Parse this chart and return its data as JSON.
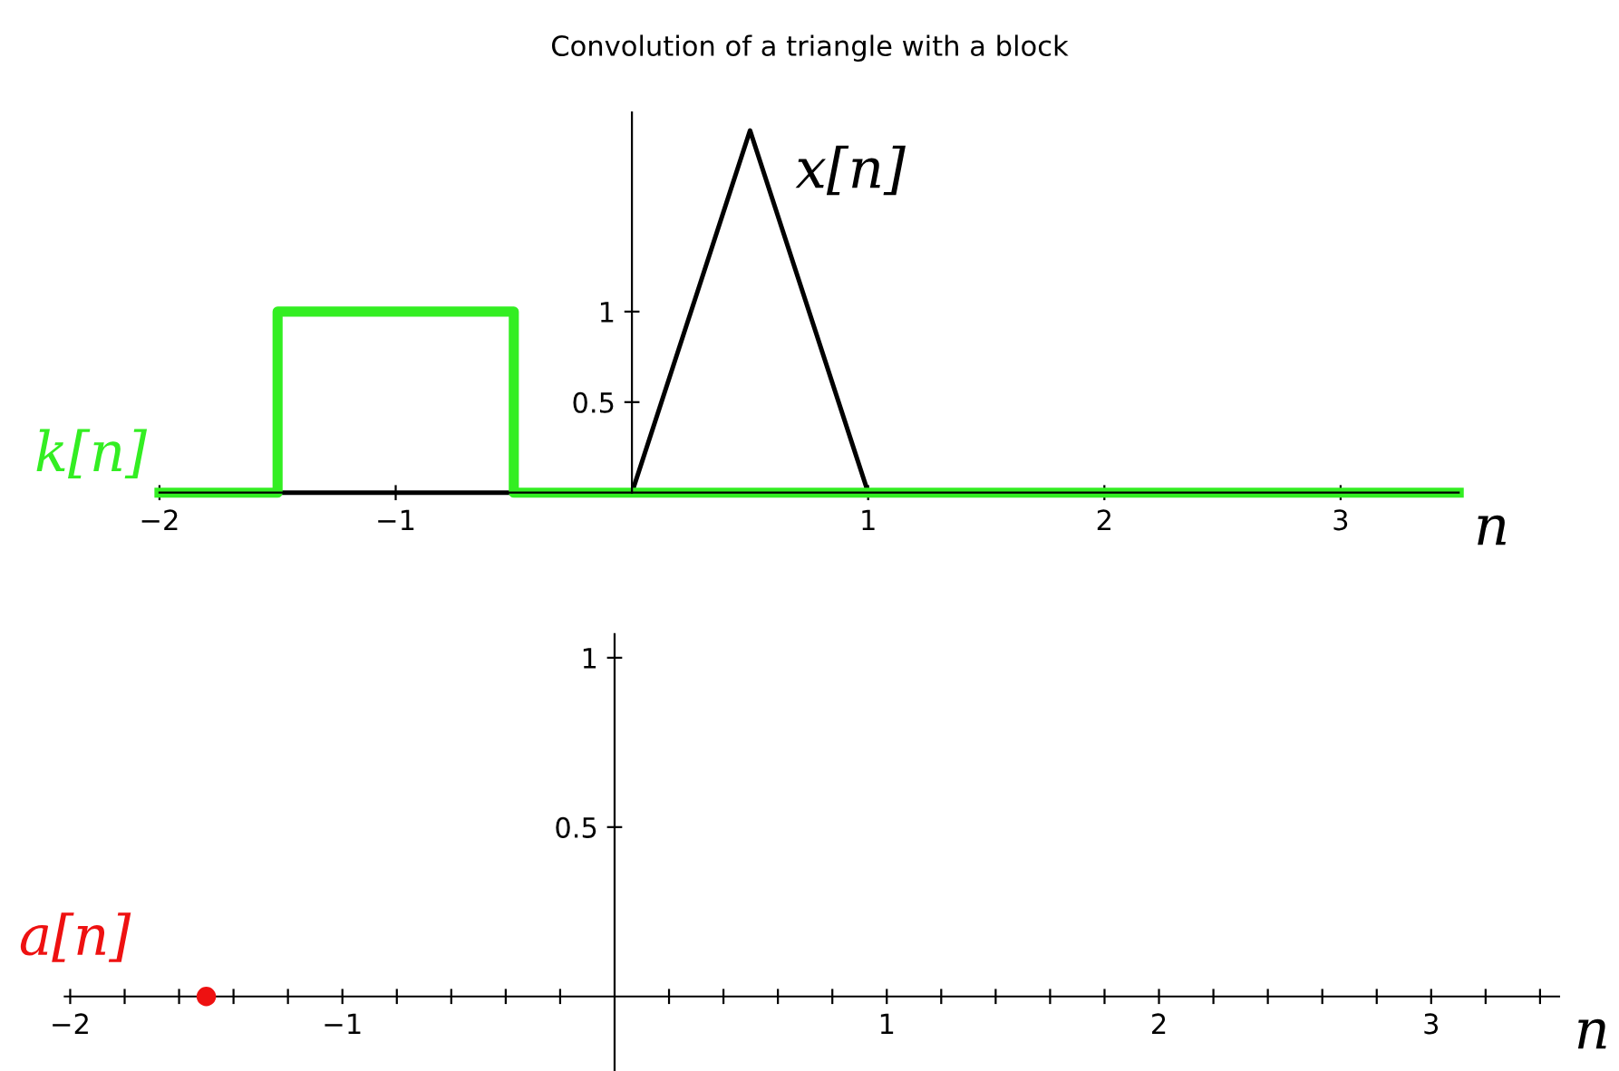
{
  "chart_data": [
    {
      "type": "line",
      "title": "Convolution of a triangle with a block",
      "xlabel": "n",
      "xlim": [
        -2,
        3.5
      ],
      "ylim": [
        0,
        2.1
      ],
      "xticks": [
        -2,
        -1,
        1,
        2,
        3
      ],
      "yticks": [
        0.5,
        1
      ],
      "series": [
        {
          "name": "x[n]",
          "color": "#000000",
          "x": [
            -1.5,
            0,
            0.5,
            1
          ],
          "values": [
            0,
            0,
            2,
            0
          ]
        },
        {
          "name": "k[n]",
          "color": "#33ee22",
          "x": [
            -2,
            -1.5,
            -1.5,
            -0.5,
            -0.5,
            3.5
          ],
          "values": [
            0,
            0,
            1,
            1,
            0,
            0
          ]
        }
      ]
    },
    {
      "type": "scatter",
      "xlabel": "n",
      "xlim": [
        -2.02,
        3.47
      ],
      "ylim": [
        -0.22,
        1.07
      ],
      "xticks": [
        -2,
        {
          "value": -1.8,
          "label": null
        },
        {
          "value": -1.6,
          "label": null
        },
        {
          "value": -1.4,
          "label": null
        },
        {
          "value": -1.2,
          "label": null
        },
        -1,
        {
          "value": -0.8,
          "label": null
        },
        {
          "value": -0.6,
          "label": null
        },
        {
          "value": -0.4,
          "label": null
        },
        {
          "value": -0.2,
          "label": null
        },
        {
          "value": 0.2,
          "label": null
        },
        {
          "value": 0.4,
          "label": null
        },
        {
          "value": 0.6,
          "label": null
        },
        {
          "value": 0.8,
          "label": null
        },
        1,
        {
          "value": 1.2,
          "label": null
        },
        {
          "value": 1.4,
          "label": null
        },
        {
          "value": 1.6,
          "label": null
        },
        {
          "value": 1.8,
          "label": null
        },
        2,
        {
          "value": 2.2,
          "label": null
        },
        {
          "value": 2.4,
          "label": null
        },
        {
          "value": 2.6,
          "label": null
        },
        {
          "value": 2.8,
          "label": null
        },
        3,
        {
          "value": 3.2,
          "label": null
        },
        {
          "value": 3.4,
          "label": null
        }
      ],
      "yticks": [
        0.5,
        1
      ],
      "marker": "circle",
      "series": [
        {
          "name": "a[n]",
          "color": "#ee1111",
          "x": [
            -1.5
          ],
          "values": [
            0
          ]
        }
      ]
    }
  ]
}
